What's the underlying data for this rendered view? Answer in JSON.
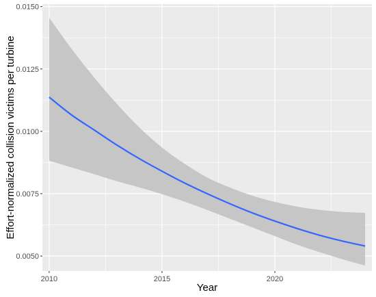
{
  "chart_data": {
    "type": "line",
    "title": "",
    "xlabel": "Year",
    "ylabel": "Effort-normalized collision victims per turbine",
    "xlim": [
      2009.7,
      2024.3
    ],
    "ylim": [
      0.0044,
      0.0151
    ],
    "x_ticks": [
      2010,
      2015,
      2020
    ],
    "x_tick_labels": [
      "2010",
      "2015",
      "2020"
    ],
    "y_ticks": [
      0.005,
      0.0075,
      0.01,
      0.0125,
      0.015
    ],
    "y_tick_labels": [
      "0.0050",
      "0.0075",
      "0.0100",
      "0.0125",
      "0.0150"
    ],
    "grid": true,
    "legend": "none",
    "colors": {
      "panel_background": "#ebebeb",
      "grid_major": "#ffffff",
      "line": "#3366ff",
      "ribbon": "#c2c2c2"
    },
    "series": [
      {
        "type": "line",
        "x": [
          2010,
          2011,
          2012,
          2013,
          2014,
          2015,
          2016,
          2017,
          2018,
          2019,
          2020,
          2021,
          2022,
          2023,
          2024
        ],
        "y": [
          0.01137,
          0.01065,
          0.01005,
          0.00945,
          0.0089,
          0.0084,
          0.00793,
          0.0075,
          0.0071,
          0.00673,
          0.0064,
          0.0061,
          0.00583,
          0.0056,
          0.0054
        ],
        "lower": [
          0.00882,
          0.00855,
          0.00828,
          0.008,
          0.00775,
          0.00748,
          0.00718,
          0.00685,
          0.0065,
          0.00615,
          0.0058,
          0.00545,
          0.00515,
          0.00487,
          0.00462
        ],
        "upper": [
          0.01455,
          0.0133,
          0.01215,
          0.0111,
          0.01015,
          0.00935,
          0.0087,
          0.00815,
          0.00775,
          0.00742,
          0.00717,
          0.00698,
          0.00685,
          0.00677,
          0.00673
        ]
      }
    ]
  }
}
